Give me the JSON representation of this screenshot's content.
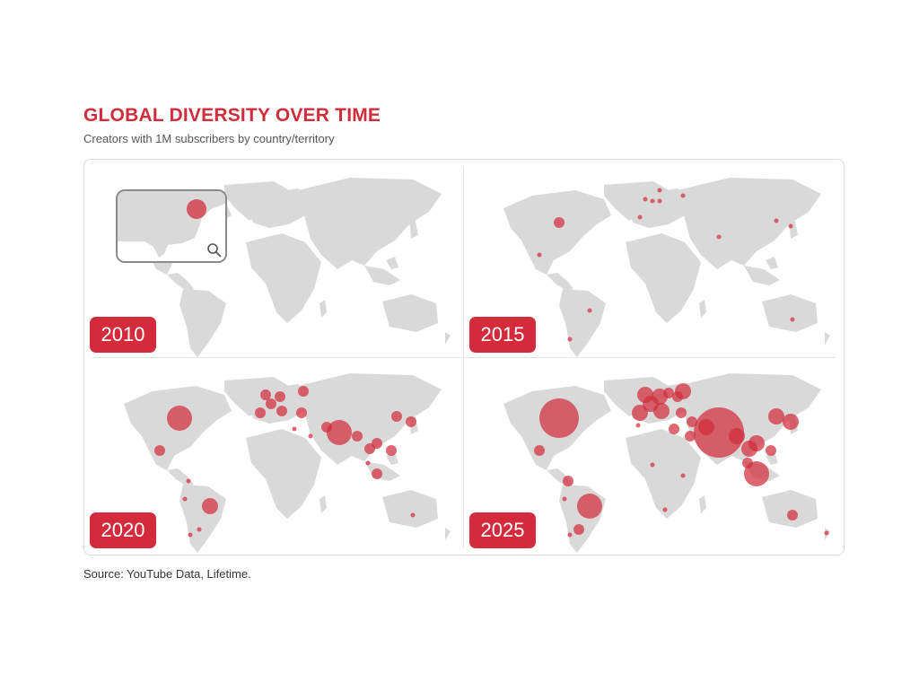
{
  "title": "GLOBAL DIVERSITY OVER TIME",
  "subtitle": "Creators with 1M subscribers by country/territory",
  "source": "Source: YouTube Data, Lifetime.",
  "colors": {
    "accent": "#d12c3c",
    "land": "#d9d9d9",
    "year_badge": "#d32a3c"
  },
  "inset": {
    "icon": "magnifier-icon"
  },
  "panels": [
    {
      "year": "2010",
      "bubbles": [
        {
          "place": "United States",
          "size": "small"
        }
      ]
    },
    {
      "year": "2015",
      "bubbles": [
        {
          "place": "United States",
          "size": "small"
        },
        {
          "place": "United Kingdom",
          "size": "tiny"
        },
        {
          "place": "Netherlands",
          "size": "tiny"
        },
        {
          "place": "Spain",
          "size": "tiny"
        },
        {
          "place": "Germany",
          "size": "tiny"
        },
        {
          "place": "Sweden",
          "size": "tiny"
        },
        {
          "place": "Russia",
          "size": "tiny"
        },
        {
          "place": "India",
          "size": "tiny"
        },
        {
          "place": "Japan",
          "size": "tiny"
        },
        {
          "place": "South Korea",
          "size": "tiny"
        },
        {
          "place": "Mexico",
          "size": "tiny"
        },
        {
          "place": "Brazil",
          "size": "tiny"
        },
        {
          "place": "Chile",
          "size": "tiny"
        },
        {
          "place": "Australia",
          "size": "tiny"
        }
      ]
    },
    {
      "year": "2020",
      "bubbles": [
        {
          "place": "United States",
          "size": "large"
        },
        {
          "place": "Mexico",
          "size": "small"
        },
        {
          "place": "Brazil",
          "size": "medium"
        },
        {
          "place": "Colombia",
          "size": "tiny"
        },
        {
          "place": "Peru",
          "size": "tiny"
        },
        {
          "place": "Argentina",
          "size": "tiny"
        },
        {
          "place": "Chile",
          "size": "tiny"
        },
        {
          "place": "United Kingdom",
          "size": "small"
        },
        {
          "place": "Spain",
          "size": "small"
        },
        {
          "place": "France",
          "size": "small"
        },
        {
          "place": "Germany",
          "size": "small"
        },
        {
          "place": "Italy",
          "size": "small"
        },
        {
          "place": "Turkey",
          "size": "small"
        },
        {
          "place": "Russia",
          "size": "small"
        },
        {
          "place": "Egypt",
          "size": "tiny"
        },
        {
          "place": "Saudi Arabia",
          "size": "tiny"
        },
        {
          "place": "India",
          "size": "large"
        },
        {
          "place": "Pakistan",
          "size": "small"
        },
        {
          "place": "Bangladesh",
          "size": "small"
        },
        {
          "place": "Thailand",
          "size": "small"
        },
        {
          "place": "Vietnam",
          "size": "small"
        },
        {
          "place": "Philippines",
          "size": "small"
        },
        {
          "place": "Indonesia",
          "size": "small"
        },
        {
          "place": "Malaysia",
          "size": "tiny"
        },
        {
          "place": "South Korea",
          "size": "small"
        },
        {
          "place": "Japan",
          "size": "small"
        },
        {
          "place": "Australia",
          "size": "tiny"
        }
      ]
    },
    {
      "year": "2025",
      "bubbles": [
        {
          "place": "United States",
          "size": "xlarge"
        },
        {
          "place": "Mexico",
          "size": "small"
        },
        {
          "place": "Colombia",
          "size": "small"
        },
        {
          "place": "Brazil",
          "size": "large"
        },
        {
          "place": "Peru",
          "size": "tiny"
        },
        {
          "place": "Argentina",
          "size": "small"
        },
        {
          "place": "Chile",
          "size": "tiny"
        },
        {
          "place": "United Kingdom",
          "size": "medium"
        },
        {
          "place": "Spain",
          "size": "medium"
        },
        {
          "place": "France",
          "size": "medium"
        },
        {
          "place": "Germany",
          "size": "medium"
        },
        {
          "place": "Italy",
          "size": "medium"
        },
        {
          "place": "Poland",
          "size": "small"
        },
        {
          "place": "Ukraine",
          "size": "small"
        },
        {
          "place": "Russia",
          "size": "medium"
        },
        {
          "place": "Turkey",
          "size": "small"
        },
        {
          "place": "Egypt",
          "size": "small"
        },
        {
          "place": "Morocco",
          "size": "tiny"
        },
        {
          "place": "Saudi Arabia",
          "size": "small"
        },
        {
          "place": "Iraq",
          "size": "small"
        },
        {
          "place": "India",
          "size": "xxlarge"
        },
        {
          "place": "Pakistan",
          "size": "medium"
        },
        {
          "place": "Bangladesh",
          "size": "medium"
        },
        {
          "place": "Thailand",
          "size": "medium"
        },
        {
          "place": "Vietnam",
          "size": "medium"
        },
        {
          "place": "Philippines",
          "size": "small"
        },
        {
          "place": "Indonesia",
          "size": "large"
        },
        {
          "place": "Malaysia",
          "size": "small"
        },
        {
          "place": "South Korea",
          "size": "medium"
        },
        {
          "place": "Japan",
          "size": "medium"
        },
        {
          "place": "Nigeria",
          "size": "tiny"
        },
        {
          "place": "Kenya",
          "size": "tiny"
        },
        {
          "place": "South Africa",
          "size": "tiny"
        },
        {
          "place": "Australia",
          "size": "small"
        },
        {
          "place": "New Zealand",
          "size": "tiny"
        }
      ]
    }
  ]
}
